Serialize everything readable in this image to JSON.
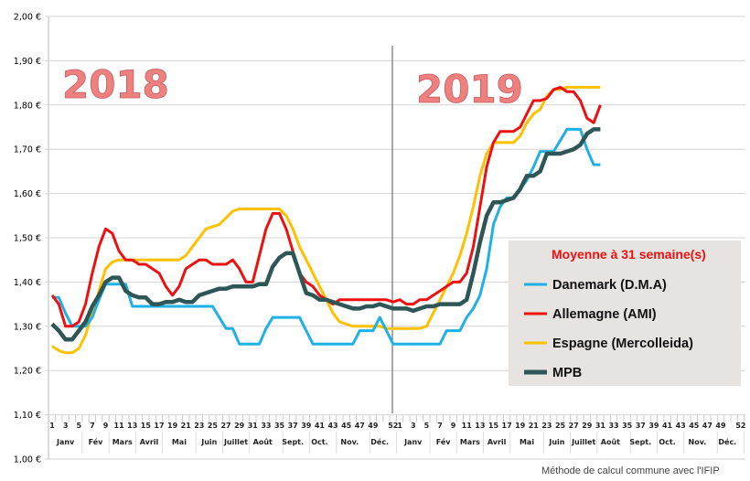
{
  "chart_data": {
    "type": "line",
    "title": "",
    "xlabel": "",
    "ylabel": "",
    "ylim": [
      1.0,
      2.0
    ],
    "ytick_step": 0.1,
    "ytick_labels": [
      "1,00 €",
      "1,10 €",
      "1,20 €",
      "1,30 €",
      "1,40 €",
      "1,50 €",
      "1,60 €",
      "1,70 €",
      "1,80 €",
      "1,90 €",
      "2,00 €"
    ],
    "grid": true,
    "legend_placement": "right",
    "x_weeks_per_year": 52,
    "years": [
      "2018",
      "2019"
    ],
    "week_tick_labels": [
      "1",
      "3",
      "5",
      "7",
      "9",
      "11",
      "13",
      "15",
      "17",
      "19",
      "21",
      "23",
      "25",
      "27",
      "29",
      "31",
      "33",
      "35",
      "37",
      "39",
      "41",
      "43",
      "45",
      "47",
      "49",
      "52"
    ],
    "month_labels": [
      "Janv",
      "Fév",
      "Mars",
      "Avril",
      "Mai",
      "Juin",
      "Juillet",
      "Août",
      "Sept.",
      "Oct.",
      "Nov.",
      "Déc."
    ],
    "legend_title": "Moyenne à  31 semaine(s)",
    "series": [
      {
        "name": "Danemark (D.M.A)",
        "color": "#1fb0e6",
        "values": [
          1.365,
          1.365,
          1.33,
          1.3,
          1.3,
          1.3,
          1.32,
          1.36,
          1.395,
          1.395,
          1.395,
          1.395,
          1.345,
          1.345,
          1.345,
          1.345,
          1.345,
          1.345,
          1.345,
          1.345,
          1.345,
          1.345,
          1.345,
          1.345,
          1.345,
          1.32,
          1.295,
          1.295,
          1.26,
          1.26,
          1.26,
          1.26,
          1.295,
          1.32,
          1.32,
          1.32,
          1.32,
          1.32,
          1.29,
          1.26,
          1.26,
          1.26,
          1.26,
          1.26,
          1.26,
          1.26,
          1.29,
          1.29,
          1.29,
          1.32,
          1.29,
          1.26,
          1.26,
          1.26,
          1.26,
          1.26,
          1.26,
          1.26,
          1.26,
          1.29,
          1.29,
          1.29,
          1.32,
          1.34,
          1.37,
          1.43,
          1.53,
          1.57,
          1.59,
          1.59,
          1.61,
          1.63,
          1.66,
          1.695,
          1.695,
          1.695,
          1.72,
          1.745,
          1.745,
          1.745,
          1.7,
          1.665,
          1.665
        ]
      },
      {
        "name": "Allemagne (AMI)",
        "color": "#ee1010",
        "values": [
          1.37,
          1.35,
          1.3,
          1.3,
          1.31,
          1.35,
          1.42,
          1.48,
          1.52,
          1.51,
          1.47,
          1.45,
          1.45,
          1.44,
          1.44,
          1.43,
          1.42,
          1.39,
          1.37,
          1.39,
          1.43,
          1.44,
          1.45,
          1.45,
          1.44,
          1.44,
          1.44,
          1.45,
          1.43,
          1.4,
          1.4,
          1.46,
          1.52,
          1.555,
          1.555,
          1.52,
          1.47,
          1.42,
          1.4,
          1.39,
          1.37,
          1.36,
          1.35,
          1.36,
          1.36,
          1.36,
          1.36,
          1.36,
          1.36,
          1.36,
          1.36,
          1.355,
          1.36,
          1.35,
          1.35,
          1.36,
          1.36,
          1.37,
          1.38,
          1.39,
          1.4,
          1.4,
          1.42,
          1.48,
          1.57,
          1.66,
          1.715,
          1.74,
          1.74,
          1.74,
          1.75,
          1.78,
          1.81,
          1.81,
          1.815,
          1.835,
          1.84,
          1.83,
          1.83,
          1.81,
          1.77,
          1.76,
          1.8
        ]
      },
      {
        "name": "Espagne (Mercolleida)",
        "color": "#ffc000",
        "values": [
          1.255,
          1.245,
          1.24,
          1.24,
          1.25,
          1.28,
          1.33,
          1.38,
          1.43,
          1.445,
          1.45,
          1.45,
          1.45,
          1.45,
          1.45,
          1.45,
          1.45,
          1.45,
          1.45,
          1.45,
          1.46,
          1.48,
          1.5,
          1.52,
          1.525,
          1.53,
          1.545,
          1.56,
          1.565,
          1.565,
          1.565,
          1.565,
          1.565,
          1.565,
          1.565,
          1.55,
          1.52,
          1.48,
          1.45,
          1.42,
          1.39,
          1.36,
          1.33,
          1.31,
          1.305,
          1.3,
          1.3,
          1.3,
          1.3,
          1.3,
          1.295,
          1.295,
          1.295,
          1.295,
          1.295,
          1.295,
          1.3,
          1.33,
          1.36,
          1.39,
          1.42,
          1.46,
          1.51,
          1.57,
          1.64,
          1.69,
          1.715,
          1.715,
          1.715,
          1.715,
          1.73,
          1.76,
          1.78,
          1.79,
          1.82,
          1.835,
          1.835,
          1.84,
          1.84,
          1.84,
          1.84,
          1.84,
          1.84
        ]
      },
      {
        "name": "MPB",
        "color": "#2f5656",
        "values": [
          1.305,
          1.29,
          1.27,
          1.27,
          1.29,
          1.31,
          1.345,
          1.37,
          1.4,
          1.41,
          1.41,
          1.38,
          1.37,
          1.365,
          1.365,
          1.35,
          1.35,
          1.355,
          1.355,
          1.36,
          1.355,
          1.355,
          1.37,
          1.375,
          1.38,
          1.385,
          1.385,
          1.39,
          1.39,
          1.39,
          1.39,
          1.395,
          1.395,
          1.435,
          1.455,
          1.465,
          1.465,
          1.42,
          1.375,
          1.37,
          1.36,
          1.36,
          1.355,
          1.35,
          1.345,
          1.34,
          1.34,
          1.345,
          1.345,
          1.35,
          1.345,
          1.34,
          1.34,
          1.34,
          1.335,
          1.34,
          1.345,
          1.345,
          1.35,
          1.35,
          1.35,
          1.35,
          1.36,
          1.42,
          1.49,
          1.55,
          1.58,
          1.58,
          1.585,
          1.59,
          1.61,
          1.64,
          1.64,
          1.65,
          1.69,
          1.69,
          1.69,
          1.695,
          1.7,
          1.71,
          1.735,
          1.745,
          1.745
        ]
      }
    ]
  },
  "footer": {
    "note": "Méthode de calcul commune avec l'IFIP"
  }
}
